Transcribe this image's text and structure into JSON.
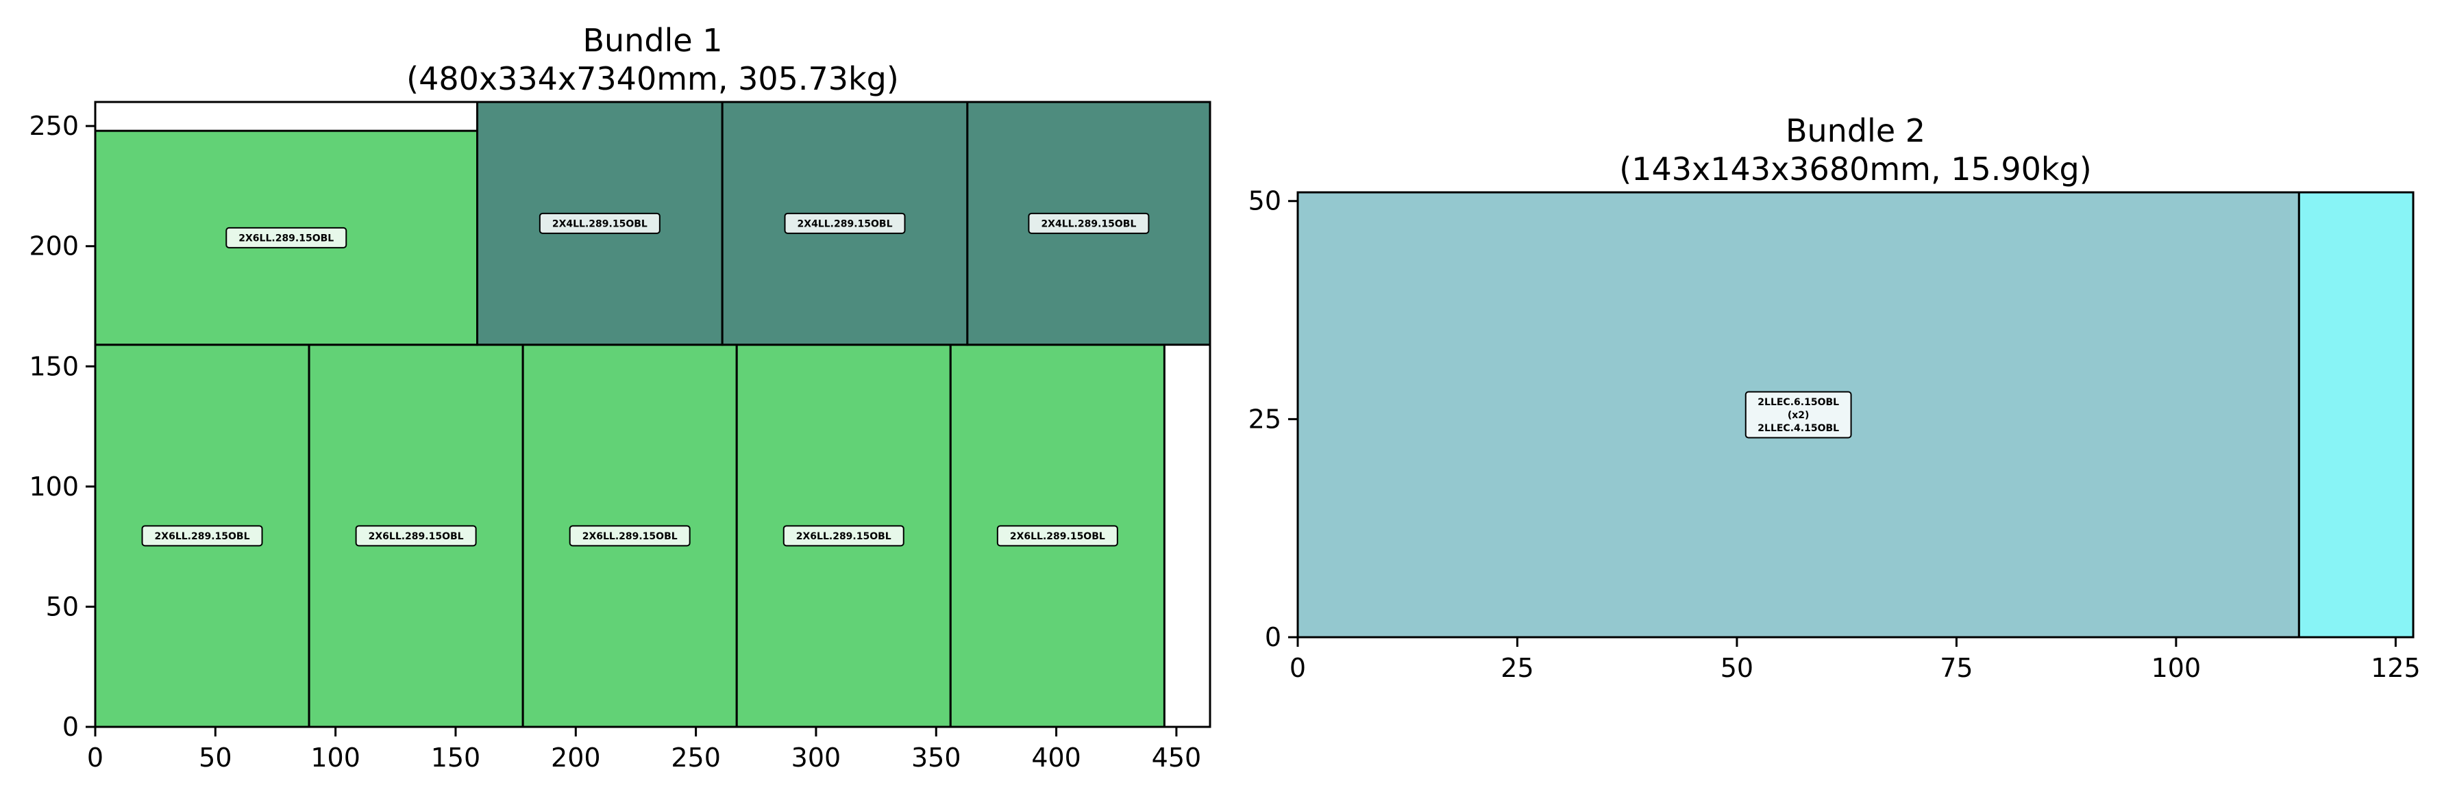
{
  "chart_data": [
    {
      "type": "rectangle-packing",
      "title_lines": [
        "Bundle 1",
        "(480x334x7340mm, 305.73kg)"
      ],
      "xlim": [
        0,
        464
      ],
      "ylim": [
        0,
        260
      ],
      "xticks": [
        0,
        50,
        100,
        150,
        200,
        250,
        300,
        350,
        400,
        450
      ],
      "yticks": [
        0,
        50,
        100,
        150,
        200,
        250
      ],
      "grid": false,
      "rects": [
        {
          "x": 0,
          "y": 0,
          "w": 89,
          "h": 159,
          "color": "#62d276",
          "label_lines": [
            "2X6LL.289.15OBL"
          ]
        },
        {
          "x": 89,
          "y": 0,
          "w": 89,
          "h": 159,
          "color": "#62d276",
          "label_lines": [
            "2X6LL.289.15OBL"
          ]
        },
        {
          "x": 178,
          "y": 0,
          "w": 89,
          "h": 159,
          "color": "#62d276",
          "label_lines": [
            "2X6LL.289.15OBL"
          ]
        },
        {
          "x": 267,
          "y": 0,
          "w": 89,
          "h": 159,
          "color": "#62d276",
          "label_lines": [
            "2X6LL.289.15OBL"
          ]
        },
        {
          "x": 356,
          "y": 0,
          "w": 89,
          "h": 159,
          "color": "#62d276",
          "label_lines": [
            "2X6LL.289.15OBL"
          ]
        },
        {
          "x": 0,
          "y": 159,
          "w": 159,
          "h": 89,
          "color": "#62d276",
          "label_lines": [
            "2X6LL.289.15OBL"
          ]
        },
        {
          "x": 159,
          "y": 159,
          "w": 102,
          "h": 101,
          "color": "#4e8c7e",
          "label_lines": [
            "2X4LL.289.15OBL"
          ]
        },
        {
          "x": 261,
          "y": 159,
          "w": 102,
          "h": 101,
          "color": "#4e8c7e",
          "label_lines": [
            "2X4LL.289.15OBL"
          ]
        },
        {
          "x": 363,
          "y": 159,
          "w": 101,
          "h": 101,
          "color": "#4e8c7e",
          "label_lines": [
            "2X4LL.289.15OBL"
          ]
        }
      ]
    },
    {
      "type": "rectangle-packing",
      "title_lines": [
        "Bundle 2",
        "(143x143x3680mm, 15.90kg)"
      ],
      "xlim": [
        0,
        127
      ],
      "ylim": [
        0,
        51
      ],
      "xticks": [
        0,
        25,
        50,
        75,
        100,
        125
      ],
      "yticks": [
        0,
        25,
        50
      ],
      "grid": false,
      "rects": [
        {
          "x": 0,
          "y": 0,
          "w": 114,
          "h": 51,
          "color": "#94c8cf",
          "label_lines": [
            "2LLEC.6.15OBL",
            "(x2)",
            "2LLEC.4.15OBL"
          ]
        },
        {
          "x": 114,
          "y": 0,
          "w": 13,
          "h": 51,
          "color": "#88f4f6",
          "label_lines": []
        }
      ]
    }
  ]
}
